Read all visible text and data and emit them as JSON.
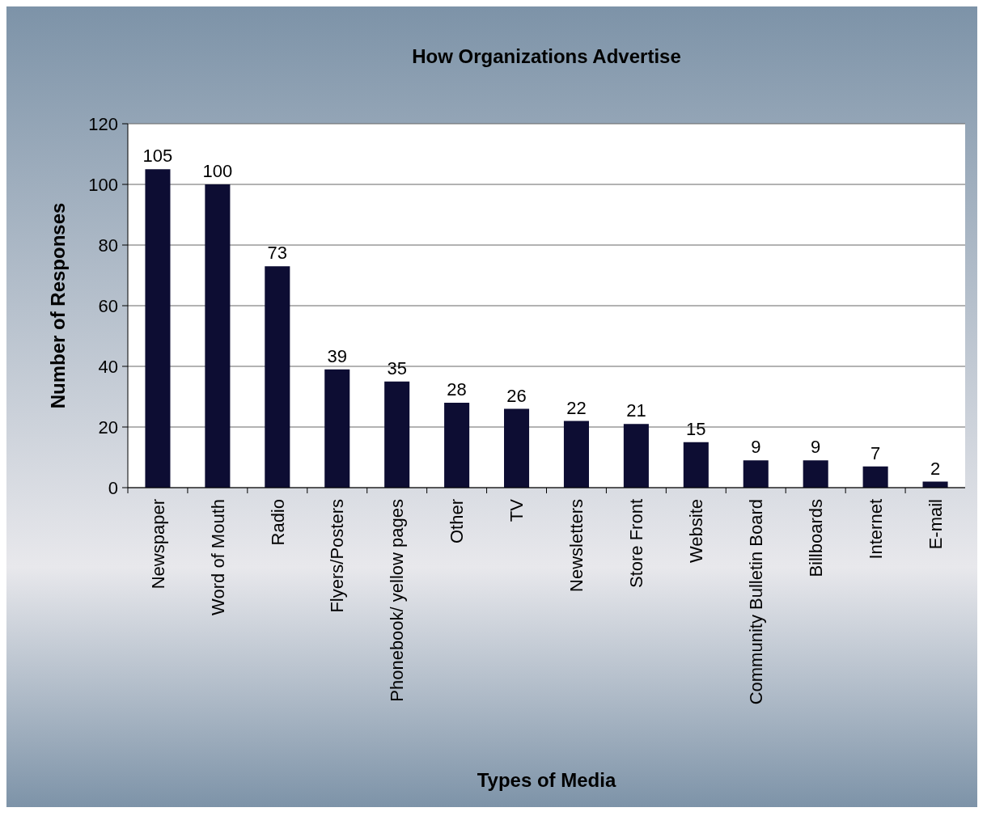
{
  "chart_data": {
    "type": "bar",
    "title": "How Organizations Advertise",
    "xlabel": "Types of Media",
    "ylabel": "Number of Responses",
    "categories": [
      "Newspaper",
      "Word of Mouth",
      "Radio",
      "Flyers/Posters",
      "Phonebook/ yellow pages",
      "Other",
      "TV",
      "Newsletters",
      "Store Front",
      "Website",
      "Community Bulletin Board",
      "Billboards",
      "Internet",
      "E-mail"
    ],
    "values": [
      105,
      100,
      73,
      39,
      35,
      28,
      26,
      22,
      21,
      15,
      9,
      9,
      7,
      2
    ],
    "color": "#0d0d33",
    "ylim": [
      0,
      120
    ],
    "yticks": [
      0,
      20,
      40,
      60,
      80,
      100,
      120
    ],
    "grid": "y",
    "data_labels": true
  }
}
